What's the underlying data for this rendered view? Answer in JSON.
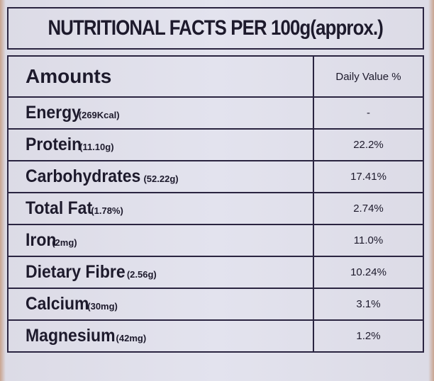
{
  "title": "NUTRITIONAL FACTS PER 100g(approx.)",
  "table": {
    "header": [
      "Amounts",
      "Daily Value %"
    ],
    "rows": [
      {
        "name": "Energy",
        "amount": "(269Kcal)",
        "daily_value": "-"
      },
      {
        "name": "Protein",
        "amount": "(11.10g)",
        "daily_value": "22.2%"
      },
      {
        "name": "Carbohydrates",
        "amount": "(52.22g)",
        "daily_value": "17.41%"
      },
      {
        "name": "Total Fat",
        "amount": "(1.78%)",
        "daily_value": "2.74%"
      },
      {
        "name": "Iron",
        "amount": "(2mg)",
        "daily_value": "11.0%"
      },
      {
        "name": "Dietary Fibre",
        "amount": "(2.56g)",
        "daily_value": "10.24%"
      },
      {
        "name": "Calcium",
        "amount": "(30mg)",
        "daily_value": "3.1%"
      },
      {
        "name": "Magnesium",
        "amount": "(42mg)",
        "daily_value": "1.2%"
      }
    ]
  }
}
